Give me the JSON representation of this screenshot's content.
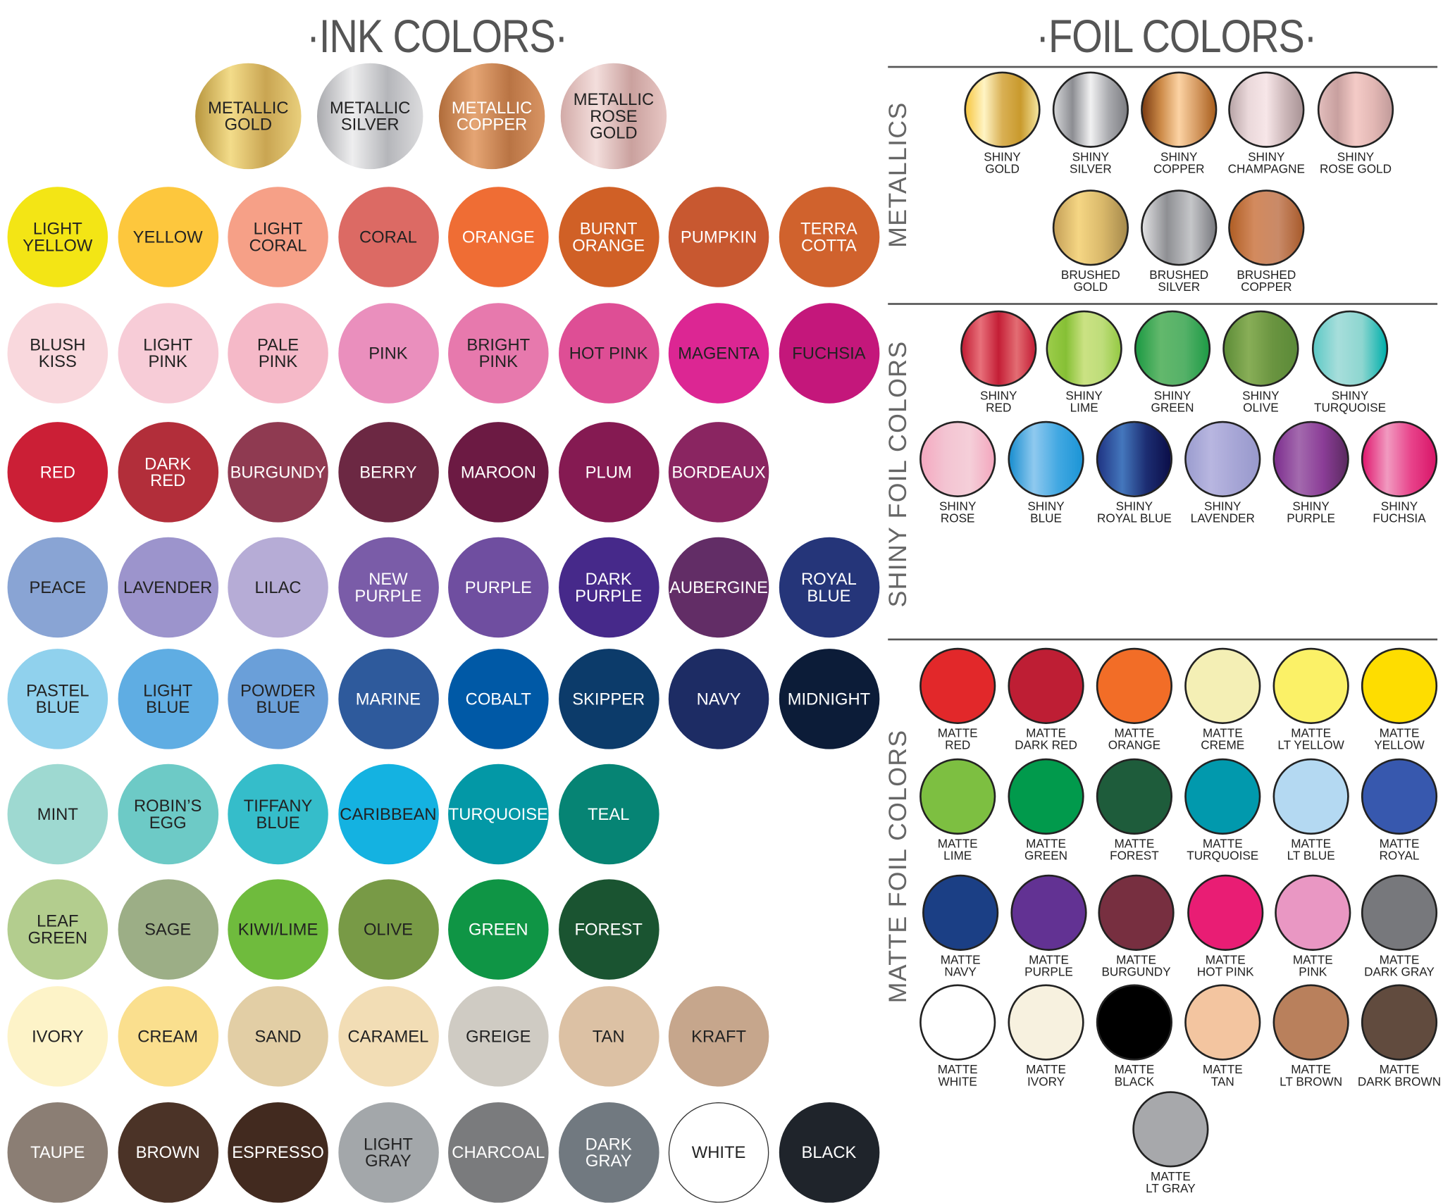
{
  "ink": {
    "title": "·INK COLORS·",
    "rows": [
      [
        {
          "l": "Metallic\nGold",
          "c": "linear-gradient(90deg,#b8963e,#f3dc8a,#c9a552,#e9cf7c)",
          "t": "#222"
        },
        {
          "l": "Metallic\nSilver",
          "c": "linear-gradient(90deg,#a8a9ad,#eeeeef,#b5b6ba,#dcdcde)",
          "t": "#222"
        },
        {
          "l": "Metallic\nCopper",
          "c": "linear-gradient(90deg,#b06c3a,#e5a574,#b97444,#d99564)",
          "t": "#fff"
        },
        {
          "l": "Metallic\nRose\nGold",
          "c": "linear-gradient(90deg,#d2aaa7,#f3dedc,#caa19e,#e8c7c4)",
          "t": "#222"
        }
      ],
      [
        {
          "l": "Light\nYellow",
          "c": "#f3e515",
          "t": "#222"
        },
        {
          "l": "Yellow",
          "c": "#fdc73d",
          "t": "#222"
        },
        {
          "l": "Light\nCoral",
          "c": "#f6a087",
          "t": "#222"
        },
        {
          "l": "Coral",
          "c": "#dc6a64",
          "t": "#222"
        },
        {
          "l": "Orange",
          "c": "#ef6d34",
          "t": "#fff"
        },
        {
          "l": "Burnt\nOrange",
          "c": "#d06026",
          "t": "#fff"
        },
        {
          "l": "Pumpkin",
          "c": "#c85830",
          "t": "#fff"
        },
        {
          "l": "Terra\nCotta",
          "c": "#d0622d",
          "t": "#fff"
        }
      ],
      [
        {
          "l": "Blush\nKiss",
          "c": "#f9d8dd",
          "t": "#222"
        },
        {
          "l": "Light\nPink",
          "c": "#f7ccd7",
          "t": "#222"
        },
        {
          "l": "Pale\nPink",
          "c": "#f5b9c8",
          "t": "#222"
        },
        {
          "l": "Pink",
          "c": "#ea8fbd",
          "t": "#222"
        },
        {
          "l": "Bright\nPink",
          "c": "#e779ad",
          "t": "#222"
        },
        {
          "l": "Hot Pink",
          "c": "#de4e95",
          "t": "#222"
        },
        {
          "l": "Magenta",
          "c": "#dc2693",
          "t": "#222"
        },
        {
          "l": "Fuchsia",
          "c": "#c4177b",
          "t": "#222"
        }
      ],
      [
        {
          "l": "Red",
          "c": "#cb1f36",
          "t": "#fff"
        },
        {
          "l": "Dark\nRed",
          "c": "#b22e3a",
          "t": "#fff"
        },
        {
          "l": "Burgundy",
          "c": "#8f3a51",
          "t": "#fff"
        },
        {
          "l": "Berry",
          "c": "#6c2843",
          "t": "#fff"
        },
        {
          "l": "Maroon",
          "c": "#6c1a43",
          "t": "#fff"
        },
        {
          "l": "Plum",
          "c": "#851a52",
          "t": "#fff"
        },
        {
          "l": "Bordeaux",
          "c": "#8a2561",
          "t": "#fff"
        }
      ],
      [
        {
          "l": "Peace",
          "c": "#89a4d4",
          "t": "#222"
        },
        {
          "l": "Lavender",
          "c": "#9c94cc",
          "t": "#222"
        },
        {
          "l": "Lilac",
          "c": "#b6acd6",
          "t": "#222"
        },
        {
          "l": "New\nPurple",
          "c": "#7a5ca8",
          "t": "#fff"
        },
        {
          "l": "Purple",
          "c": "#6f4ea0",
          "t": "#fff"
        },
        {
          "l": "Dark\nPurple",
          "c": "#46298a",
          "t": "#fff"
        },
        {
          "l": "Aubergine",
          "c": "#622d66",
          "t": "#fff"
        },
        {
          "l": "Royal\nBlue",
          "c": "#253579",
          "t": "#fff"
        }
      ],
      [
        {
          "l": "Pastel\nBlue",
          "c": "#90d1ed",
          "t": "#222"
        },
        {
          "l": "Light\nBlue",
          "c": "#5fade3",
          "t": "#222"
        },
        {
          "l": "Powder\nBlue",
          "c": "#6a9fd9",
          "t": "#222"
        },
        {
          "l": "Marine",
          "c": "#2e5a9c",
          "t": "#fff"
        },
        {
          "l": "Cobalt",
          "c": "#0059a6",
          "t": "#fff"
        },
        {
          "l": "Skipper",
          "c": "#0c3b6a",
          "t": "#fff"
        },
        {
          "l": "Navy",
          "c": "#1d2c64",
          "t": "#fff"
        },
        {
          "l": "Midnight",
          "c": "#0c1c38",
          "t": "#fff"
        }
      ],
      [
        {
          "l": "Mint",
          "c": "#9ed9d1",
          "t": "#222"
        },
        {
          "l": "Robin’s\nEgg",
          "c": "#6dcac6",
          "t": "#222"
        },
        {
          "l": "Tiffany\nBlue",
          "c": "#35bdca",
          "t": "#222"
        },
        {
          "l": "Caribbean",
          "c": "#14b2e1",
          "t": "#222"
        },
        {
          "l": "Turquoise",
          "c": "#0398a6",
          "t": "#fff"
        },
        {
          "l": "Teal",
          "c": "#068474",
          "t": "#fff"
        }
      ],
      [
        {
          "l": "Leaf\nGreen",
          "c": "#b3cd8e",
          "t": "#222"
        },
        {
          "l": "Sage",
          "c": "#9cae86",
          "t": "#222"
        },
        {
          "l": "Kiwi/Lime",
          "c": "#6fbb3d",
          "t": "#222"
        },
        {
          "l": "Olive",
          "c": "#789a46",
          "t": "#222"
        },
        {
          "l": "Green",
          "c": "#0f9545",
          "t": "#fff"
        },
        {
          "l": "Forest",
          "c": "#1a5431",
          "t": "#fff"
        }
      ],
      [
        {
          "l": "Ivory",
          "c": "#fdf3c8",
          "t": "#222"
        },
        {
          "l": "Cream",
          "c": "#fadf8e",
          "t": "#222"
        },
        {
          "l": "Sand",
          "c": "#e2cea5",
          "t": "#222"
        },
        {
          "l": "Caramel",
          "c": "#f2ddb5",
          "t": "#222"
        },
        {
          "l": "Greige",
          "c": "#cfcbc3",
          "t": "#222"
        },
        {
          "l": "Tan",
          "c": "#dcc1a4",
          "t": "#222"
        },
        {
          "l": "Kraft",
          "c": "#c6a68c",
          "t": "#222"
        }
      ],
      [
        {
          "l": "Taupe",
          "c": "#8b7e74",
          "t": "#fff"
        },
        {
          "l": "Brown",
          "c": "#4b3327",
          "t": "#fff"
        },
        {
          "l": "Espresso",
          "c": "#422a1f",
          "t": "#fff"
        },
        {
          "l": "Light\nGray",
          "c": "#a3a7aa",
          "t": "#222"
        },
        {
          "l": "Charcoal",
          "c": "#7a7b7d",
          "t": "#fff"
        },
        {
          "l": "Dark\nGray",
          "c": "#717980",
          "t": "#fff"
        },
        {
          "l": "White",
          "c": "#ffffff",
          "t": "#222"
        },
        {
          "l": "Black",
          "c": "#1f242b",
          "t": "#fff"
        }
      ]
    ]
  },
  "foil": {
    "title": "·FOIL COLORS·",
    "sections": [
      {
        "label": "METALLICS",
        "rows": [
          [
            {
              "l": "Shiny\nGold",
              "c": "linear-gradient(90deg,#f7c844,#fff4c4,#d9b054,#c99a2d,#f4e49c)"
            },
            {
              "l": "Shiny\nSilver",
              "c": "linear-gradient(90deg,#d3d4d6,#8c8d92,#f1f1f2,#a9aaae,#7d7e83)"
            },
            {
              "l": "Shiny\nCopper",
              "c": "linear-gradient(90deg,#7d3d13,#cc8a48,#fcd3a4,#d59a62,#a95f1e)"
            },
            {
              "l": "Shiny\nChampagne",
              "c": "linear-gradient(90deg,#b9a6a8,#ead8da,#f7e6e8,#cdb8ba,#a99496)"
            },
            {
              "l": "Shiny\nRose Gold",
              "c": "linear-gradient(90deg,#e1bcbb,#c8a09f,#f4cbc7,#e2b7b4,#c19b9a)"
            }
          ],
          [
            {
              "l": "Brushed\nGold",
              "c": "linear-gradient(90deg,#c5a058,#f5d684,#d9b86a,#a68a4c)"
            },
            {
              "l": "Brushed\nSilver",
              "c": "linear-gradient(90deg,#e0e0e2,#8e8f93,#c5c6c9,#7a7b80)"
            },
            {
              "l": "Brushed\nCopper",
              "c": "linear-gradient(90deg,#b05f26,#d38a5e,#c98a68,#a85b2c)"
            }
          ]
        ]
      },
      {
        "label": "SHINY FOIL COLORS",
        "rows": [
          [
            {
              "l": "Shiny\nRed",
              "c": "linear-gradient(90deg,#c21d34,#e8707a,#c41e36,#e36d73,#c41e36)"
            },
            {
              "l": "Shiny\nLime",
              "c": "linear-gradient(90deg,#9ccc4a,#86c035,#cbe283,#bedd7a,#95c944)"
            },
            {
              "l": "Shiny\nGreen",
              "c": "linear-gradient(90deg,#1d9a44,#63b86c,#55b168,#1f9b46)"
            },
            {
              "l": "Shiny\nOlive",
              "c": "linear-gradient(90deg,#5d8c37,#88ae57,#6a9440,#5b8a38)"
            },
            {
              "l": "Shiny\nTurquoise",
              "c": "linear-gradient(90deg,#5ec9c6,#a7dedb,#8dd6d0,#00afab)"
            }
          ],
          [
            {
              "l": "Shiny\nRose",
              "c": "linear-gradient(90deg,#f4a9c0,#f3c4d2,#f5cfd9,#f3a7be)"
            },
            {
              "l": "Shiny\nBlue",
              "c": "linear-gradient(90deg,#1b8fd0,#8fc9ef,#42a8e2,#1c95d6)"
            },
            {
              "l": "Shiny\nRoyal Blue",
              "c": "linear-gradient(90deg,#203584,#4477bd,#1c2d72,#0b0e48)"
            },
            {
              "l": "Shiny\nLavender",
              "c": "linear-gradient(90deg,#9b9dcf,#b8b6e0,#a7a6d6,#9899cc)"
            },
            {
              "l": "Shiny\nPurple",
              "c": "linear-gradient(90deg,#7d2e8e,#a36aae,#8b3d97,#5b2a60)"
            },
            {
              "l": "Shiny\nFuchsia",
              "c": "linear-gradient(90deg,#e0196f,#f19ac0,#e8428a,#d81668)"
            }
          ]
        ]
      },
      {
        "label": "MATTE FOIL COLORS",
        "rows": [
          [
            {
              "l": "Matte\nRed",
              "c": "#e2282a"
            },
            {
              "l": "Matte\nDark Red",
              "c": "#be1e34"
            },
            {
              "l": "Matte\nOrange",
              "c": "#f26d27"
            },
            {
              "l": "Matte\nCreme",
              "c": "#f4efb5"
            },
            {
              "l": "Matte\nLt Yellow",
              "c": "#fbf167"
            },
            {
              "l": "Matte\nYellow",
              "c": "#fedd00"
            }
          ],
          [
            {
              "l": "Matte\nLime",
              "c": "#7dbf41"
            },
            {
              "l": "Matte\nGreen",
              "c": "#019a4c"
            },
            {
              "l": "Matte\nForest",
              "c": "#1e5c3b"
            },
            {
              "l": "Matte\nTurquoise",
              "c": "#0199ad"
            },
            {
              "l": "Matte\nLt Blue",
              "c": "#b4d9f2"
            },
            {
              "l": "Matte\nRoyal",
              "c": "#3758ae"
            }
          ],
          [
            {
              "l": "Matte\nNavy",
              "c": "#1b3f85"
            },
            {
              "l": "Matte\nPurple",
              "c": "#623293"
            },
            {
              "l": "Matte\nBurgundy",
              "c": "#772f40"
            },
            {
              "l": "Matte\nHot Pink",
              "c": "#e91d74"
            },
            {
              "l": "Matte\nPink",
              "c": "#e997c3"
            },
            {
              "l": "Matte\nDark Gray",
              "c": "#77787c"
            }
          ],
          [
            {
              "l": "Matte\nWhite",
              "c": "#ffffff"
            },
            {
              "l": "Matte\nIvory",
              "c": "#f7f1df"
            },
            {
              "l": "Matte\nBlack",
              "c": "#000000"
            },
            {
              "l": "Matte\nTan",
              "c": "#f3c5a0"
            },
            {
              "l": "Matte\nLt Brown",
              "c": "#b9805c"
            },
            {
              "l": "Matte\nDark Brown",
              "c": "#614b3e"
            }
          ],
          [
            {
              "l": "Matte\nLt Gray",
              "c": "#a7a8ab"
            }
          ]
        ]
      }
    ]
  }
}
